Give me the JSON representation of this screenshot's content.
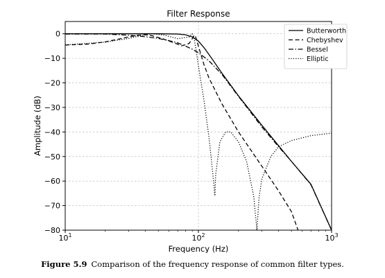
{
  "caption": {
    "label": "Figure 5.9",
    "text": "Comparison of the frequency response of common filter types."
  },
  "chart_data": {
    "type": "line",
    "title": "Filter Response",
    "xlabel": "Frequency (Hz)",
    "ylabel": "Amplitude (dB)",
    "xscale": "log",
    "xlim": [
      10,
      1000
    ],
    "ylim": [
      -80,
      5
    ],
    "grid": true,
    "legend_position": "top-right",
    "x_ticks": [
      {
        "value": 10,
        "base": "10",
        "exp": "1"
      },
      {
        "value": 100,
        "base": "10",
        "exp": "2"
      },
      {
        "value": 1000,
        "base": "10",
        "exp": "3"
      }
    ],
    "y_ticks": [
      {
        "value": 0,
        "label": "0"
      },
      {
        "value": -10,
        "label": "−10"
      },
      {
        "value": -20,
        "label": "−20"
      },
      {
        "value": -30,
        "label": "−30"
      },
      {
        "value": -40,
        "label": "−40"
      },
      {
        "value": -50,
        "label": "−50"
      },
      {
        "value": -60,
        "label": "−60"
      },
      {
        "value": -70,
        "label": "−70"
      },
      {
        "value": -80,
        "label": "−80"
      }
    ],
    "series": [
      {
        "name": "Butterworth",
        "style": "solid",
        "color": "#000000",
        "points": [
          [
            10,
            0
          ],
          [
            30,
            0
          ],
          [
            50,
            0
          ],
          [
            70,
            -0.1
          ],
          [
            80,
            -0.4
          ],
          [
            90,
            -1.3
          ],
          [
            100,
            -3
          ],
          [
            110,
            -5.6
          ],
          [
            125,
            -9.8
          ],
          [
            150,
            -16
          ],
          [
            200,
            -25.3
          ],
          [
            300,
            -37.3
          ],
          [
            400,
            -45.6
          ],
          [
            500,
            -52
          ],
          [
            700,
            -61.3
          ],
          [
            1000,
            -80
          ]
        ]
      },
      {
        "name": "Chebyshev",
        "style": "dashed",
        "color": "#000000",
        "points": [
          [
            10,
            -4.6
          ],
          [
            15,
            -4.2
          ],
          [
            20,
            -3.3
          ],
          [
            25,
            -2.2
          ],
          [
            30,
            -1.3
          ],
          [
            35,
            -0.6
          ],
          [
            40,
            -0.4
          ],
          [
            45,
            -0.8
          ],
          [
            55,
            -2.2
          ],
          [
            65,
            -3.6
          ],
          [
            75,
            -4.9
          ],
          [
            85,
            -4
          ],
          [
            90,
            -2
          ],
          [
            93,
            -0.6
          ],
          [
            95,
            -1
          ],
          [
            100,
            -5
          ],
          [
            110,
            -12.5
          ],
          [
            120,
            -18
          ],
          [
            150,
            -28.5
          ],
          [
            200,
            -40
          ],
          [
            300,
            -54
          ],
          [
            400,
            -64
          ],
          [
            500,
            -72.5
          ],
          [
            560,
            -80
          ]
        ]
      },
      {
        "name": "Bessel",
        "style": "dashdot",
        "color": "#000000",
        "points": [
          [
            10,
            -0.1
          ],
          [
            20,
            -0.1
          ],
          [
            30,
            -0.6
          ],
          [
            40,
            -1.2
          ],
          [
            50,
            -1.9
          ],
          [
            60,
            -2.8
          ],
          [
            70,
            -3.7
          ],
          [
            80,
            -5
          ],
          [
            90,
            -6.3
          ],
          [
            100,
            -7.7
          ],
          [
            120,
            -11
          ],
          [
            150,
            -16.5
          ],
          [
            200,
            -25.5
          ],
          [
            300,
            -38
          ],
          [
            400,
            -46
          ],
          [
            500,
            -52
          ],
          [
            700,
            -61.5
          ],
          [
            1000,
            -80
          ]
        ]
      },
      {
        "name": "Elliptic",
        "style": "dotted",
        "color": "#000000",
        "points": [
          [
            10,
            -4.5
          ],
          [
            20,
            -3.4
          ],
          [
            30,
            -1.9
          ],
          [
            40,
            -0.4
          ],
          [
            45,
            0
          ],
          [
            55,
            -0.5
          ],
          [
            70,
            -2
          ],
          [
            85,
            -1.3
          ],
          [
            90,
            0
          ],
          [
            93,
            -2
          ],
          [
            97,
            -8
          ],
          [
            100,
            -13
          ],
          [
            110,
            -27
          ],
          [
            120,
            -42
          ],
          [
            130,
            -60
          ],
          [
            133,
            -66
          ],
          [
            135,
            -57
          ],
          [
            145,
            -44
          ],
          [
            160,
            -40
          ],
          [
            175,
            -40
          ],
          [
            200,
            -44
          ],
          [
            230,
            -52
          ],
          [
            260,
            -66
          ],
          [
            275,
            -80
          ],
          [
            285,
            -67
          ],
          [
            300,
            -59
          ],
          [
            350,
            -50
          ],
          [
            400,
            -46
          ],
          [
            500,
            -43.5
          ],
          [
            700,
            -41.5
          ],
          [
            1000,
            -40.5
          ]
        ]
      }
    ]
  }
}
